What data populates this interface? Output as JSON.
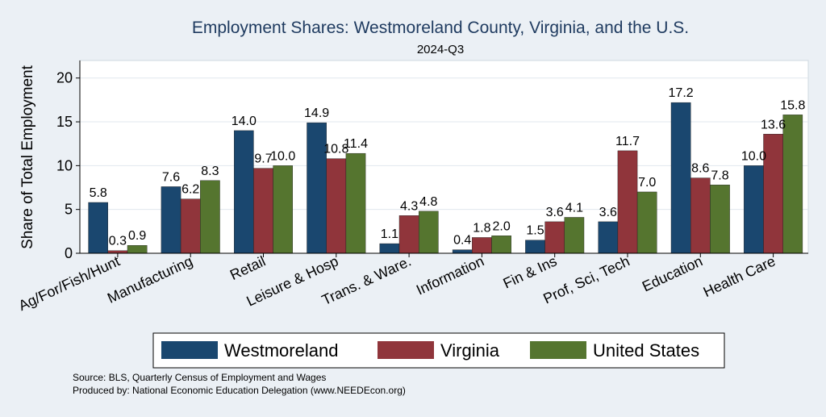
{
  "chart_data": {
    "type": "bar",
    "title": "Employment Shares: Westmoreland County, Virginia, and the U.S.",
    "subtitle": "2024-Q3",
    "ylabel": "Share of Total Employment",
    "xlabel": "",
    "ylim": [
      0,
      22
    ],
    "yticks": [
      "0",
      "5",
      "10",
      "15",
      "20"
    ],
    "grid": true,
    "legend_position": "bottom",
    "categories": [
      "Ag/For/Fish/Hunt",
      "Manufacturing",
      "Retail",
      "Leisure & Hosp",
      "Trans. & Ware.",
      "Information",
      "Fin & Ins",
      "Prof, Sci, Tech",
      "Education",
      "Health Care"
    ],
    "series": [
      {
        "name": "Westmoreland",
        "color": "#1a476f",
        "values": [
          5.8,
          7.6,
          14.0,
          14.9,
          1.1,
          0.4,
          1.5,
          3.6,
          17.2,
          10.0
        ],
        "labels": [
          "5.8",
          "7.6",
          "14.0",
          "14.9",
          "1.1",
          "0.4",
          "1.5",
          "3.6",
          "17.2",
          "10.0"
        ]
      },
      {
        "name": "Virginia",
        "color": "#90353b",
        "values": [
          0.3,
          6.2,
          9.7,
          10.8,
          4.3,
          1.8,
          3.6,
          11.7,
          8.6,
          13.6
        ],
        "labels": [
          "0.3",
          "6.2",
          "9.7",
          "10.8",
          "4.3",
          "1.8",
          "3.6",
          "11.7",
          "8.6",
          "13.6"
        ]
      },
      {
        "name": "United States",
        "color": "#55752f",
        "values": [
          0.9,
          8.3,
          10.0,
          11.4,
          4.8,
          2.0,
          4.1,
          7.0,
          7.8,
          15.8
        ],
        "labels": [
          "0.9",
          "8.3",
          "10.0",
          "11.4",
          "4.8",
          "2.0",
          "4.1",
          "7.0",
          "7.8",
          "15.8"
        ]
      }
    ],
    "notes": [
      "Source: BLS, Quarterly Census of Employment and Wages",
      "Produced by: National Economic Education Delegation (www.NEEDEcon.org)"
    ]
  }
}
